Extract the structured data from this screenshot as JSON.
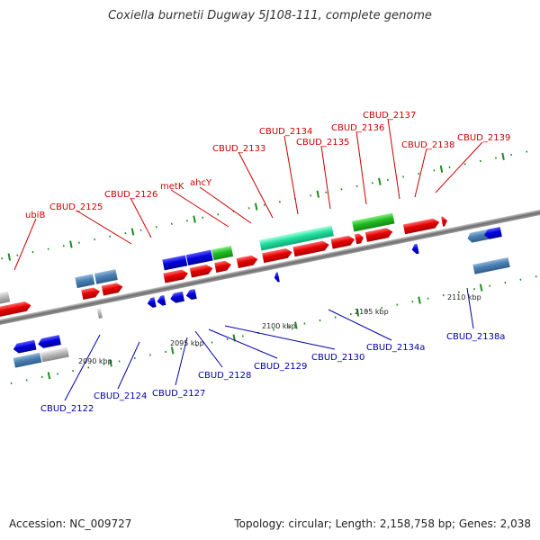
{
  "title": "Coxiella burnetii Dugway 5J108-111, complete genome",
  "footer": {
    "accession": "Accession: NC_009727",
    "stats": "Topology: circular; Length: 2,158,758 bp; Genes: 2,038"
  },
  "colors": {
    "forward_cds": "#e60000",
    "reverse_cds": "#0000dd",
    "steel_gene": "#4a7fb0",
    "green_gene": "#22bb22",
    "mint_gene": "#22e0a0",
    "grey_gene": "#b0b0b0",
    "backbone": "#7a7a7a",
    "tick_green": "#1e8b1e",
    "label_forward": "#cc0000",
    "label_reverse": "#0000aa"
  },
  "scale_labels": [
    "2090 kbp",
    "2095 kbp",
    "2100 kbp",
    "2105 kbp",
    "2110 kbp"
  ],
  "forward_labels": [
    "ubiB",
    "CBUD_2125",
    "CBUD_2126",
    "metK",
    "ahcY",
    "CBUD_2133",
    "CBUD_2134",
    "CBUD_2135",
    "CBUD_2136",
    "CBUD_2137",
    "CBUD_2138",
    "CBUD_2139"
  ],
  "reverse_labels": [
    "CBUD_2122",
    "CBUD_2124",
    "CBUD_2127",
    "CBUD_2128",
    "CBUD_2129",
    "CBUD_2130",
    "CBUD_2134a",
    "CBUD_2138a"
  ]
}
